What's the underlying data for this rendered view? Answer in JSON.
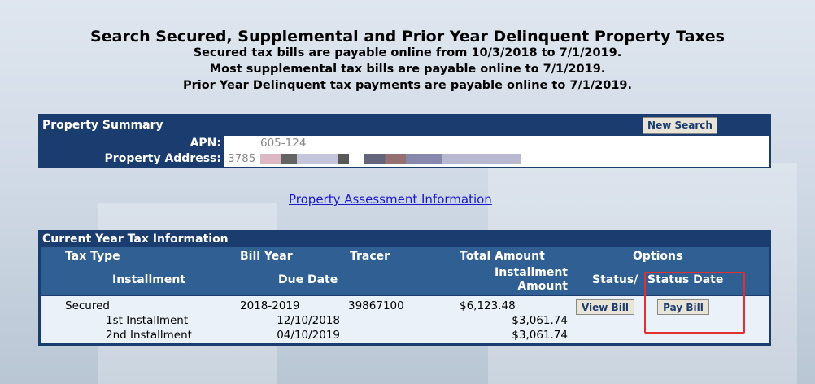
{
  "header": {
    "title": "Search Secured, Supplemental and Prior Year Delinquent Property Taxes",
    "lines": [
      "Secured tax bills are payable online from 10/3/2018 to 7/1/2019.",
      "Most supplemental tax bills are payable online to 7/1/2019.",
      "Prior Year Delinquent tax payments are payable online to 7/1/2019."
    ]
  },
  "summary": {
    "title": "Property Summary",
    "button": "New Search",
    "apn_label": "APN:",
    "apn_value": "605-124",
    "address_label": "Property Address:",
    "address_value": "3785"
  },
  "link": "Property Assessment Information",
  "tax_table": {
    "title": "Current Year Tax Information",
    "header_top": [
      "Tax Type",
      "Bill Year",
      "Tracer",
      "Total Amount",
      "Options"
    ],
    "header_bottom": [
      "Installment",
      "Due Date",
      "Installment Amount",
      "Status/",
      "Status Date"
    ],
    "row": {
      "tax_type": "Secured",
      "bill_year": "2018-2019",
      "tracer": "39867100",
      "total": "$6,123.48",
      "view": "View Bill",
      "pay": "Pay Bill"
    },
    "installments": [
      {
        "name": "1st Installment",
        "due": "12/10/2018",
        "amount": "$3,061.74"
      },
      {
        "name": "2nd Installment",
        "due": "04/10/2019",
        "amount": "$3,061.74"
      }
    ]
  }
}
